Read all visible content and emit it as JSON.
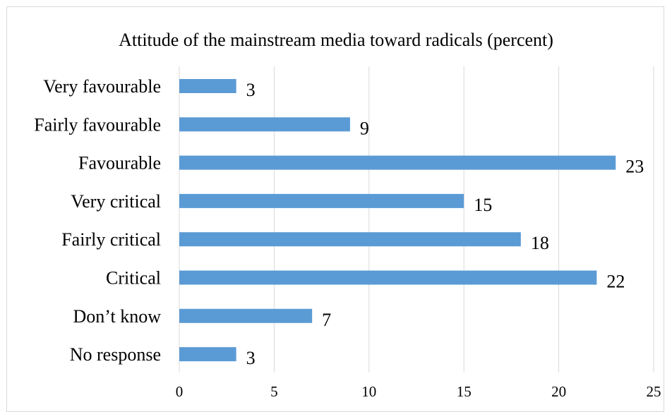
{
  "chart_data": {
    "type": "bar",
    "orientation": "horizontal",
    "title": "Attitude of the mainstream media toward radicals (percent)",
    "categories": [
      "Very favourable",
      "Fairly favourable",
      "Favourable",
      "Very critical",
      "Fairly critical",
      "Critical",
      "Don’t know",
      "No response"
    ],
    "values": [
      3,
      9,
      23,
      15,
      18,
      22,
      7,
      3
    ],
    "xlim": [
      0,
      25
    ],
    "xticks": [
      0,
      5,
      10,
      15,
      20,
      25
    ],
    "xlabel": "",
    "ylabel": "",
    "grid": "vertical",
    "legend": "none",
    "data_labels": true,
    "colors": {
      "bar": "#5b9bd5",
      "grid": "#d9d9d9",
      "text": "#000000"
    }
  }
}
